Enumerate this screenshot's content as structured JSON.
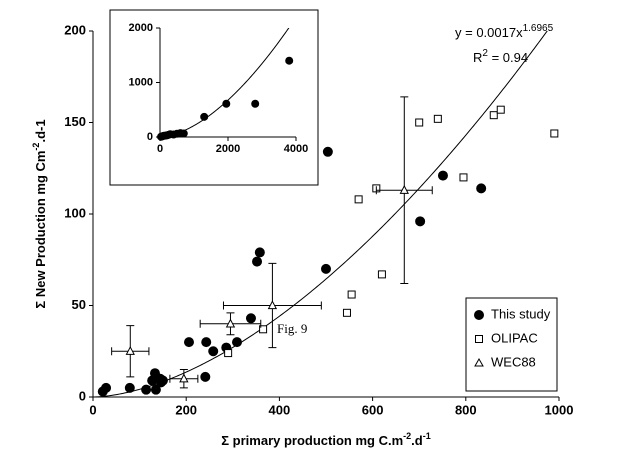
{
  "chart_data": [
    {
      "type": "scatter",
      "x_label": [
        "Σ primary production mg C.m",
        "-2",
        ".d",
        "-1"
      ],
      "y_label": [
        "Σ New Production mg Cm",
        "-2",
        ".d-1"
      ],
      "xlim": [
        0,
        1000
      ],
      "xticks": [
        0,
        200,
        400,
        600,
        800,
        1000
      ],
      "ylim": [
        0,
        200
      ],
      "yticks": [
        0,
        50,
        100,
        150,
        200
      ],
      "legend": "lower right",
      "series": [
        {
          "name": "This study",
          "marker": "circle",
          "color": "#000000",
          "x": [
            21,
            28,
            79,
            114,
            127,
            133,
            135,
            144,
            146,
            150,
            206,
            243,
            241,
            258,
            286,
            309,
            339,
            352,
            358,
            500,
            504,
            702,
            751,
            833
          ],
          "values": [
            3,
            5,
            5,
            4,
            9,
            13,
            4,
            10,
            8,
            9,
            30,
            30,
            11,
            25,
            27,
            30,
            43,
            74,
            79,
            70,
            134,
            96,
            121,
            114
          ]
        },
        {
          "name": "OLIPAC",
          "marker": "square",
          "color": "#ffffff",
          "x": [
            290,
            365,
            545,
            555,
            570,
            608,
            620,
            700,
            740,
            795,
            860,
            875,
            990
          ],
          "values": [
            24,
            37,
            46,
            56,
            108,
            114,
            67,
            150,
            152,
            120,
            154,
            157,
            144
          ]
        },
        {
          "name": "WEC88",
          "marker": "triangle",
          "color": "#ffffff",
          "x": [
            80,
            195,
            295,
            385,
            668
          ],
          "values": [
            25,
            10,
            40,
            50,
            113
          ],
          "xerr": [
            40,
            30,
            65,
            105,
            60
          ],
          "yerr": [
            14,
            5,
            6,
            23,
            51
          ]
        }
      ],
      "fit": {
        "a": 0.0017,
        "b": 1.6965,
        "equation": "y = 0.0017x",
        "exponent": "1.6965",
        "r2_symbol": "R",
        "r2_power": "2",
        "r2_text": " = 0.94"
      },
      "annotation": "Fig. 9"
    },
    {
      "type": "scatter",
      "xlim": [
        0,
        4000
      ],
      "xticks": [
        0,
        2000,
        4000
      ],
      "ylim": [
        0,
        2000
      ],
      "yticks": [
        0,
        1000,
        2000
      ],
      "series": [
        {
          "marker": "circle",
          "color": "#000000",
          "x": [
            30,
            60,
            100,
            150,
            200,
            250,
            300,
            400,
            500,
            600,
            700,
            1300,
            1950,
            2800,
            3800
          ],
          "values": [
            5,
            10,
            20,
            25,
            30,
            40,
            50,
            45,
            60,
            70,
            65,
            370,
            610,
            610,
            1400
          ]
        }
      ],
      "fit": {
        "a": 0.0017,
        "b": 1.6965
      }
    }
  ]
}
